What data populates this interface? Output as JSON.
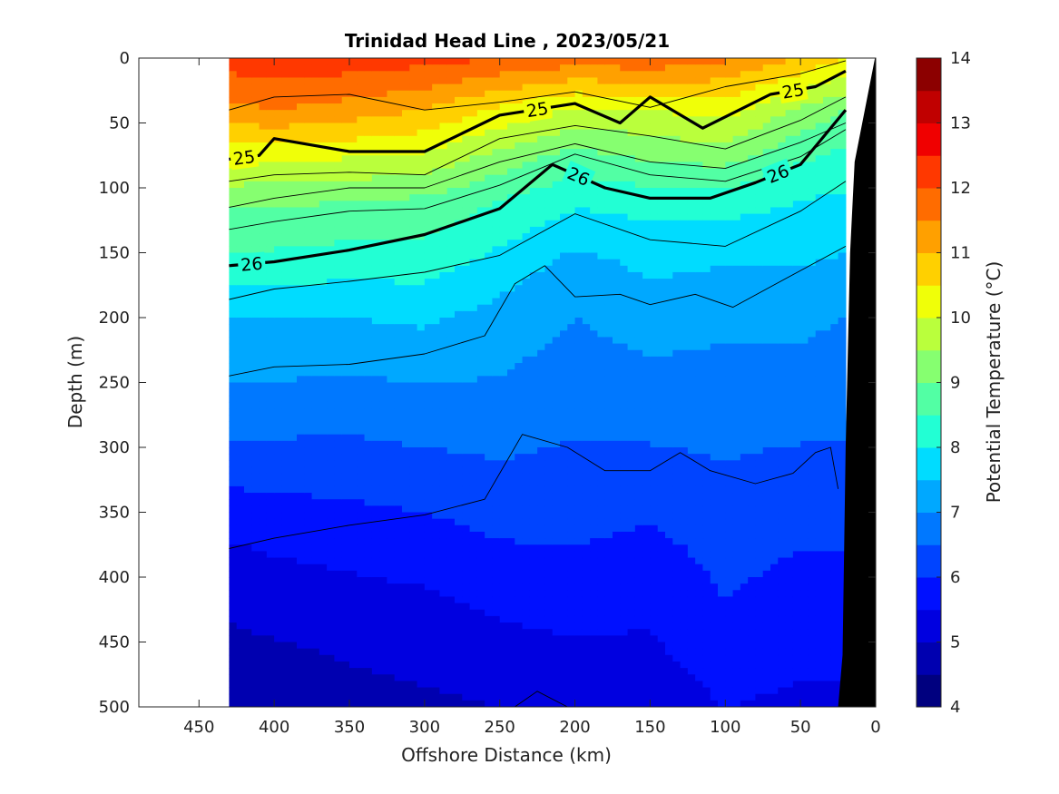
{
  "chart_data": {
    "type": "heatmap",
    "title": "Trinidad Head Line , 2023/05/21",
    "xlabel": "Offshore Distance (km)",
    "ylabel": "Depth (m)",
    "colorbar_label": "Potential Temperature (°C)",
    "xlim": [
      490,
      0
    ],
    "ylim": [
      0,
      500
    ],
    "x_reversed": true,
    "y_reversed": true,
    "xticks": [
      450,
      400,
      350,
      300,
      250,
      200,
      150,
      100,
      50,
      0
    ],
    "yticks": [
      0,
      50,
      100,
      150,
      200,
      250,
      300,
      350,
      400,
      450,
      500
    ],
    "colorbar_range": [
      4,
      14
    ],
    "colorbar_ticks": [
      4,
      5,
      6,
      7,
      8,
      9,
      10,
      11,
      12,
      13,
      14
    ],
    "colormap": [
      "#00007f",
      "#0000b0",
      "#0000e0",
      "#0010ff",
      "#0044ff",
      "#0078ff",
      "#00a8ff",
      "#00dcff",
      "#22ffd4",
      "#52ffa4",
      "#86ff70",
      "#baff3c",
      "#f0ff08",
      "#ffd000",
      "#ffa000",
      "#ff6c00",
      "#ff3800",
      "#f00000",
      "#c00000",
      "#8c0000"
    ],
    "data_x_range": [
      430,
      20
    ],
    "bathymetry_color": "#000000",
    "columns_x": [
      430,
      400,
      350,
      300,
      250,
      200,
      150,
      100,
      50,
      20
    ],
    "temperature_profiles": [
      {
        "x": 430,
        "d": [
          0,
          40,
          80,
          110,
          160,
          200,
          260,
          310,
          360,
          420,
          500
        ],
        "t": [
          12.3,
          11.3,
          10.1,
          9.1,
          8.3,
          7.5,
          6.9,
          6.3,
          5.6,
          5.1,
          4.6
        ]
      },
      {
        "x": 400,
        "d": [
          0,
          40,
          80,
          110,
          160,
          200,
          260,
          310,
          360,
          420,
          500
        ],
        "t": [
          12.4,
          11.5,
          10.0,
          9.1,
          8.3,
          7.5,
          6.9,
          6.3,
          5.7,
          5.2,
          4.6
        ]
      },
      {
        "x": 350,
        "d": [
          0,
          40,
          80,
          110,
          160,
          200,
          260,
          310,
          360,
          420,
          500
        ],
        "t": [
          12.3,
          11.3,
          9.9,
          9.0,
          8.2,
          7.5,
          6.8,
          6.3,
          5.8,
          5.3,
          4.8
        ]
      },
      {
        "x": 300,
        "d": [
          0,
          40,
          80,
          110,
          160,
          200,
          260,
          310,
          360,
          420,
          500
        ],
        "t": [
          12.2,
          11.0,
          9.8,
          8.9,
          8.2,
          7.6,
          6.9,
          6.4,
          5.9,
          5.4,
          4.9
        ]
      },
      {
        "x": 250,
        "d": [
          0,
          40,
          80,
          110,
          160,
          200,
          260,
          310,
          360,
          420,
          500
        ],
        "t": [
          12.0,
          10.4,
          9.2,
          8.5,
          7.8,
          7.3,
          6.9,
          6.5,
          6.1,
          5.6,
          5.0
        ]
      },
      {
        "x": 200,
        "d": [
          0,
          40,
          80,
          110,
          160,
          200,
          260,
          310,
          360,
          420,
          500
        ],
        "t": [
          11.8,
          9.9,
          8.7,
          8.1,
          7.3,
          7.0,
          6.7,
          6.4,
          6.1,
          5.7,
          5.1
        ]
      },
      {
        "x": 150,
        "d": [
          0,
          40,
          80,
          110,
          160,
          200,
          260,
          310,
          360,
          420,
          500
        ],
        "t": [
          11.9,
          10.0,
          9.0,
          8.2,
          7.6,
          7.2,
          6.8,
          6.4,
          6.0,
          5.6,
          5.2
        ]
      },
      {
        "x": 100,
        "d": [
          0,
          40,
          80,
          110,
          160,
          200,
          260,
          310,
          360,
          420,
          500
        ],
        "t": [
          11.6,
          10.2,
          9.1,
          8.2,
          7.5,
          7.1,
          6.8,
          6.5,
          6.2,
          6.0,
          5.5
        ]
      },
      {
        "x": 50,
        "d": [
          0,
          40,
          80,
          110,
          160,
          200,
          260,
          310,
          360,
          420,
          500
        ],
        "t": [
          11.0,
          9.4,
          8.5,
          8.0,
          7.5,
          7.1,
          6.8,
          6.4,
          6.1,
          5.8,
          5.4
        ]
      },
      {
        "x": 20,
        "d": [
          0,
          40,
          80,
          110,
          160,
          200,
          260,
          310,
          360,
          420,
          500
        ],
        "t": [
          10.5,
          9.0,
          8.3,
          7.9,
          7.4,
          7.0,
          6.7,
          6.4,
          6.1,
          5.8,
          5.4
        ]
      }
    ],
    "density_contours": [
      {
        "label": "",
        "bold": false,
        "points": [
          [
            430,
            40
          ],
          [
            400,
            30
          ],
          [
            350,
            28
          ],
          [
            300,
            40
          ],
          [
            250,
            34
          ],
          [
            200,
            26
          ],
          [
            150,
            38
          ],
          [
            100,
            22
          ],
          [
            50,
            12
          ],
          [
            20,
            2
          ]
        ]
      },
      {
        "label": "25",
        "bold": true,
        "points": [
          [
            430,
            78
          ],
          [
            410,
            75
          ],
          [
            400,
            62
          ],
          [
            350,
            72
          ],
          [
            300,
            72
          ],
          [
            250,
            44
          ],
          [
            200,
            35
          ],
          [
            170,
            50
          ],
          [
            150,
            30
          ],
          [
            115,
            54
          ],
          [
            70,
            28
          ],
          [
            40,
            22
          ],
          [
            20,
            10
          ]
        ]
      },
      {
        "label": "",
        "bold": false,
        "points": [
          [
            430,
            95
          ],
          [
            400,
            90
          ],
          [
            350,
            88
          ],
          [
            300,
            90
          ],
          [
            250,
            62
          ],
          [
            200,
            52
          ],
          [
            150,
            60
          ],
          [
            100,
            70
          ],
          [
            50,
            48
          ],
          [
            20,
            30
          ]
        ]
      },
      {
        "label": "",
        "bold": false,
        "points": [
          [
            430,
            115
          ],
          [
            400,
            108
          ],
          [
            350,
            100
          ],
          [
            300,
            100
          ],
          [
            250,
            80
          ],
          [
            200,
            66
          ],
          [
            150,
            80
          ],
          [
            100,
            85
          ],
          [
            50,
            65
          ],
          [
            20,
            50
          ]
        ]
      },
      {
        "label": "",
        "bold": false,
        "points": [
          [
            430,
            132
          ],
          [
            400,
            126
          ],
          [
            350,
            118
          ],
          [
            300,
            116
          ],
          [
            250,
            98
          ],
          [
            200,
            74
          ],
          [
            150,
            90
          ],
          [
            100,
            95
          ],
          [
            50,
            76
          ],
          [
            20,
            55
          ]
        ]
      },
      {
        "label": "26",
        "bold": true,
        "points": [
          [
            430,
            160
          ],
          [
            400,
            157
          ],
          [
            350,
            148
          ],
          [
            300,
            136
          ],
          [
            250,
            116
          ],
          [
            215,
            82
          ],
          [
            180,
            100
          ],
          [
            150,
            108
          ],
          [
            110,
            108
          ],
          [
            80,
            96
          ],
          [
            50,
            82
          ],
          [
            20,
            40
          ]
        ]
      },
      {
        "label": "",
        "bold": false,
        "points": [
          [
            430,
            186
          ],
          [
            400,
            178
          ],
          [
            350,
            172
          ],
          [
            300,
            165
          ],
          [
            250,
            152
          ],
          [
            200,
            120
          ],
          [
            150,
            140
          ],
          [
            100,
            145
          ],
          [
            50,
            118
          ],
          [
            20,
            95
          ]
        ]
      },
      {
        "label": "",
        "bold": false,
        "points": [
          [
            430,
            245
          ],
          [
            400,
            238
          ],
          [
            350,
            236
          ],
          [
            300,
            228
          ],
          [
            260,
            214
          ],
          [
            240,
            174
          ],
          [
            220,
            160
          ],
          [
            200,
            184
          ],
          [
            170,
            182
          ],
          [
            150,
            190
          ],
          [
            120,
            182
          ],
          [
            95,
            192
          ],
          [
            60,
            170
          ],
          [
            20,
            145
          ]
        ]
      },
      {
        "label": "",
        "bold": false,
        "points": [
          [
            430,
            378
          ],
          [
            400,
            370
          ],
          [
            350,
            360
          ],
          [
            300,
            352
          ],
          [
            260,
            340
          ],
          [
            235,
            290
          ],
          [
            205,
            300
          ],
          [
            180,
            318
          ],
          [
            150,
            318
          ],
          [
            130,
            304
          ],
          [
            110,
            318
          ],
          [
            80,
            328
          ],
          [
            55,
            320
          ],
          [
            40,
            304
          ],
          [
            30,
            300
          ],
          [
            25,
            332
          ]
        ]
      },
      {
        "label": "",
        "bold": false,
        "points": [
          [
            240,
            500
          ],
          [
            225,
            488
          ],
          [
            205,
            500
          ]
        ]
      }
    ]
  }
}
